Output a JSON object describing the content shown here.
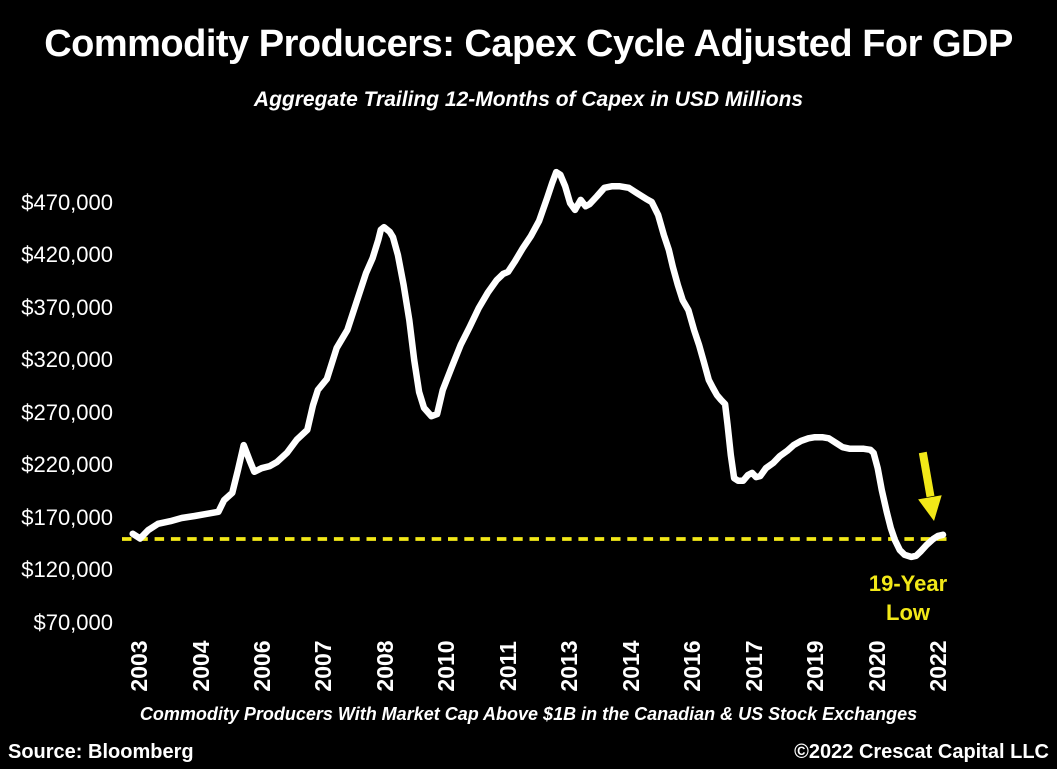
{
  "page": {
    "background": "#000000",
    "accent_yellow": "#F2E818",
    "line_color": "#FFFFFF"
  },
  "header": {
    "title": "Commodity Producers: Capex Cycle Adjusted For GDP",
    "subtitle": "Aggregate Trailing 12-Months of Capex in USD Millions"
  },
  "footer": {
    "source": "Source: Bloomberg",
    "copyright": "©2022 Crescat Capital LLC"
  },
  "chart_data": {
    "type": "line",
    "title": "Commodity Producers: Capex Cycle Adjusted For GDP",
    "subtitle": "Aggregate Trailing 12-Months of Capex in USD Millions",
    "footnote": "Commodity Producers With Market Cap Above $1B in the Canadian & US Stock Exchanges",
    "unit": "USD Millions",
    "legend": "none",
    "grid": "off",
    "x_axis": {
      "tick_labels": [
        "2003",
        "2004",
        "2006",
        "2007",
        "2008",
        "2010",
        "2011",
        "2013",
        "2014",
        "2016",
        "2017",
        "2019",
        "2020",
        "2022"
      ],
      "range_years": [
        2003,
        2022
      ],
      "label_rotation_deg": -90
    },
    "y_axis": {
      "tick_labels": [
        "$470,000",
        "$420,000",
        "$370,000",
        "$320,000",
        "$270,000",
        "$220,000",
        "$170,000",
        "$120,000",
        "$70,000"
      ],
      "tick_values": [
        470000,
        420000,
        370000,
        320000,
        270000,
        220000,
        170000,
        120000,
        70000
      ],
      "min": 45000,
      "max": 515000
    },
    "reference_line": {
      "value": 149000,
      "style": "dashed",
      "color": "#F2E818"
    },
    "annotation": {
      "line1": "19-Year",
      "line2": "Low",
      "color": "#F2E818",
      "arrow": "down",
      "points_to_value": 151000
    },
    "series": [
      {
        "name": "Aggregate trailing 12-months capex of commodity producers",
        "color": "#FFFFFF",
        "points": [
          [
            0.007,
            154000
          ],
          [
            0.016,
            149500
          ],
          [
            0.026,
            157500
          ],
          [
            0.038,
            163500
          ],
          [
            0.053,
            166000
          ],
          [
            0.067,
            169000
          ],
          [
            0.083,
            171000
          ],
          [
            0.098,
            173000
          ],
          [
            0.112,
            175000
          ],
          [
            0.119,
            186000
          ],
          [
            0.129,
            193000
          ],
          [
            0.136,
            215000
          ],
          [
            0.143,
            238500
          ],
          [
            0.151,
            222500
          ],
          [
            0.156,
            213000
          ],
          [
            0.165,
            216500
          ],
          [
            0.175,
            218500
          ],
          [
            0.184,
            222500
          ],
          [
            0.196,
            231000
          ],
          [
            0.208,
            243500
          ],
          [
            0.221,
            253000
          ],
          [
            0.228,
            276500
          ],
          [
            0.234,
            291000
          ],
          [
            0.245,
            301500
          ],
          [
            0.257,
            331000
          ],
          [
            0.27,
            348000
          ],
          [
            0.282,
            376500
          ],
          [
            0.293,
            402500
          ],
          [
            0.301,
            416500
          ],
          [
            0.308,
            434000
          ],
          [
            0.311,
            443500
          ],
          [
            0.315,
            446000
          ],
          [
            0.322,
            441500
          ],
          [
            0.326,
            436500
          ],
          [
            0.332,
            419500
          ],
          [
            0.339,
            391000
          ],
          [
            0.346,
            357500
          ],
          [
            0.352,
            319500
          ],
          [
            0.358,
            289000
          ],
          [
            0.364,
            274000
          ],
          [
            0.373,
            266000
          ],
          [
            0.38,
            268000
          ],
          [
            0.387,
            291000
          ],
          [
            0.398,
            313000
          ],
          [
            0.409,
            334000
          ],
          [
            0.42,
            351000
          ],
          [
            0.431,
            369000
          ],
          [
            0.442,
            383500
          ],
          [
            0.453,
            395500
          ],
          [
            0.461,
            401500
          ],
          [
            0.467,
            403500
          ],
          [
            0.475,
            413000
          ],
          [
            0.485,
            426000
          ],
          [
            0.495,
            437500
          ],
          [
            0.505,
            452000
          ],
          [
            0.515,
            474000
          ],
          [
            0.521,
            488000
          ],
          [
            0.526,
            498500
          ],
          [
            0.531,
            496000
          ],
          [
            0.537,
            485000
          ],
          [
            0.543,
            469000
          ],
          [
            0.549,
            462500
          ],
          [
            0.556,
            472000
          ],
          [
            0.562,
            466000
          ],
          [
            0.567,
            468000
          ],
          [
            0.576,
            475500
          ],
          [
            0.585,
            483500
          ],
          [
            0.594,
            485000
          ],
          [
            0.604,
            485000
          ],
          [
            0.615,
            483500
          ],
          [
            0.625,
            478500
          ],
          [
            0.636,
            473000
          ],
          [
            0.643,
            470000
          ],
          [
            0.651,
            457500
          ],
          [
            0.658,
            438500
          ],
          [
            0.664,
            424500
          ],
          [
            0.669,
            408000
          ],
          [
            0.675,
            391000
          ],
          [
            0.681,
            376500
          ],
          [
            0.688,
            367000
          ],
          [
            0.695,
            348000
          ],
          [
            0.701,
            334000
          ],
          [
            0.707,
            317500
          ],
          [
            0.713,
            300500
          ],
          [
            0.718,
            293000
          ],
          [
            0.723,
            286000
          ],
          [
            0.728,
            281500
          ],
          [
            0.733,
            277500
          ],
          [
            0.736,
            257500
          ],
          [
            0.74,
            229000
          ],
          [
            0.744,
            207000
          ],
          [
            0.749,
            204500
          ],
          [
            0.755,
            204500
          ],
          [
            0.761,
            210000
          ],
          [
            0.766,
            212000
          ],
          [
            0.771,
            208000
          ],
          [
            0.776,
            209000
          ],
          [
            0.783,
            216500
          ],
          [
            0.792,
            221500
          ],
          [
            0.8,
            228000
          ],
          [
            0.809,
            233000
          ],
          [
            0.817,
            238500
          ],
          [
            0.826,
            242500
          ],
          [
            0.835,
            245000
          ],
          [
            0.843,
            246000
          ],
          [
            0.852,
            246000
          ],
          [
            0.86,
            245000
          ],
          [
            0.869,
            240500
          ],
          [
            0.877,
            236500
          ],
          [
            0.886,
            235000
          ],
          [
            0.894,
            235000
          ],
          [
            0.903,
            235000
          ],
          [
            0.911,
            234000
          ],
          [
            0.915,
            231000
          ],
          [
            0.92,
            216500
          ],
          [
            0.925,
            195500
          ],
          [
            0.931,
            175000
          ],
          [
            0.936,
            159500
          ],
          [
            0.941,
            148000
          ],
          [
            0.947,
            138500
          ],
          [
            0.953,
            134000
          ],
          [
            0.961,
            132000
          ],
          [
            0.967,
            133000
          ],
          [
            0.973,
            137500
          ],
          [
            0.98,
            143500
          ],
          [
            0.988,
            149000
          ],
          [
            0.994,
            152000
          ],
          [
            1.0,
            153000
          ]
        ]
      }
    ]
  }
}
